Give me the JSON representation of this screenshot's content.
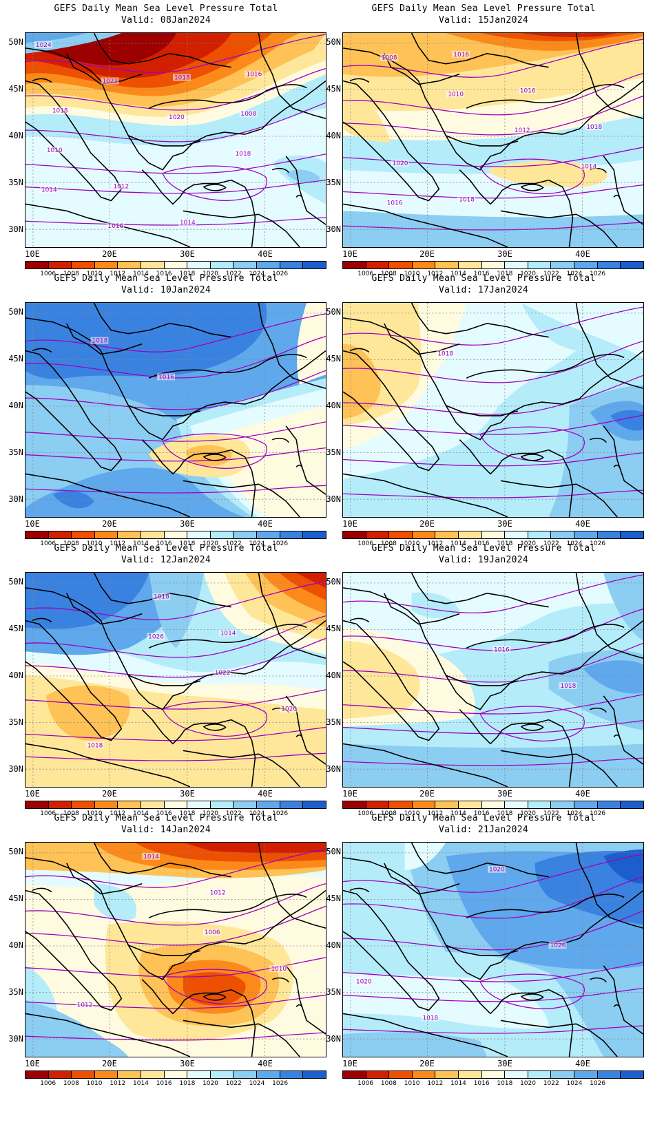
{
  "map_title": "GEFS Daily Mean Sea Level Pressure Total",
  "lat_labels": [
    "50N",
    "45N",
    "40N",
    "35N",
    "30N"
  ],
  "lon_labels": [
    "10E",
    "20E",
    "30E",
    "40E"
  ],
  "colorbar": {
    "colors": [
      "#9c0000",
      "#d11f00",
      "#ed5000",
      "#fb8a1a",
      "#fec256",
      "#ffe79a",
      "#fffbe0",
      "#e4fbff",
      "#b4ecfa",
      "#8ccdf2",
      "#5fa8ec",
      "#3a82e0",
      "#1c5fcc"
    ],
    "labels": [
      "1006",
      "1008",
      "1010",
      "1012",
      "1014",
      "1016",
      "1018",
      "1020",
      "1022",
      "1024",
      "1026"
    ]
  },
  "contour_color": "#a000c0",
  "panels": [
    {
      "id": "p1",
      "valid": "Valid: 08Jan2024",
      "labels": [
        "1024",
        "1022",
        "1020",
        "1018",
        "1014",
        "1016",
        "1018",
        "1008",
        "1010",
        "1012",
        "1014",
        "1016",
        "1018"
      ]
    },
    {
      "id": "p2",
      "valid": "Valid: 15Jan2024",
      "labels": [
        "1008",
        "1010",
        "1012",
        "1014",
        "1016",
        "1016",
        "1016",
        "1018",
        "1020",
        "1018"
      ]
    },
    {
      "id": "p3",
      "valid": "Valid: 10Jan2024",
      "labels": [
        "1018",
        "1016"
      ]
    },
    {
      "id": "p4",
      "valid": "Valid: 17Jan2024",
      "labels": [
        "1018"
      ]
    },
    {
      "id": "p5",
      "valid": "Valid: 12Jan2024",
      "labels": [
        "1026",
        "1022",
        "1020",
        "1018",
        "1018",
        "1014"
      ]
    },
    {
      "id": "p6",
      "valid": "Valid: 19Jan2024",
      "labels": [
        "1016",
        "1018"
      ]
    },
    {
      "id": "p7",
      "valid": "Valid: 14Jan2024",
      "labels": [
        "1006",
        "1010",
        "1012",
        "1014",
        "1012"
      ]
    },
    {
      "id": "p8",
      "valid": "Valid: 21Jan2024",
      "labels": [
        "1026",
        "1020",
        "1018",
        "1020"
      ]
    }
  ]
}
